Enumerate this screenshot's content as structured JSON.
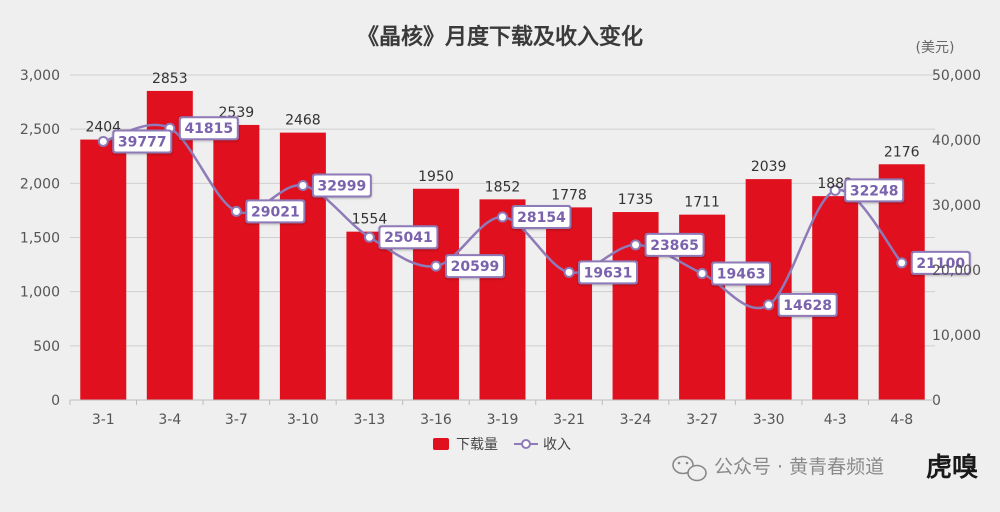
{
  "chart_data": {
    "type": "bar",
    "title": "《晶核》月度下载及收入变化",
    "right_axis_unit": "(美元)",
    "categories": [
      "3-1",
      "3-4",
      "3-7",
      "3-10",
      "3-13",
      "3-16",
      "3-19",
      "3-21",
      "3-24",
      "3-27",
      "3-30",
      "4-3",
      "4-8"
    ],
    "series": [
      {
        "name": "下载量",
        "type": "bar",
        "axis": "left",
        "color": "#e0101e",
        "values": [
          2404,
          2853,
          2539,
          2468,
          1554,
          1950,
          1852,
          1778,
          1735,
          1711,
          2039,
          1882,
          2176
        ]
      },
      {
        "name": "收入",
        "type": "line",
        "axis": "right",
        "color": "#8f7ab8",
        "values": [
          39777,
          41815,
          29021,
          32999,
          25041,
          20599,
          28154,
          19631,
          23865,
          19463,
          14628,
          32248,
          21100
        ]
      }
    ],
    "left_axis": {
      "ylim": [
        0,
        3000
      ],
      "ticks": [
        "0",
        "500",
        "1,000",
        "1,500",
        "2,000",
        "2,500",
        "3,000"
      ]
    },
    "right_axis": {
      "ylim": [
        0,
        50000
      ],
      "ticks": [
        "0",
        "10,000",
        "20,000",
        "30,000",
        "40,000",
        "50,000"
      ]
    },
    "grid": true,
    "legend_position": "bottom"
  },
  "watermark": {
    "text": "公众号 · 黄青春频道",
    "logo_text": "虎嗅"
  }
}
